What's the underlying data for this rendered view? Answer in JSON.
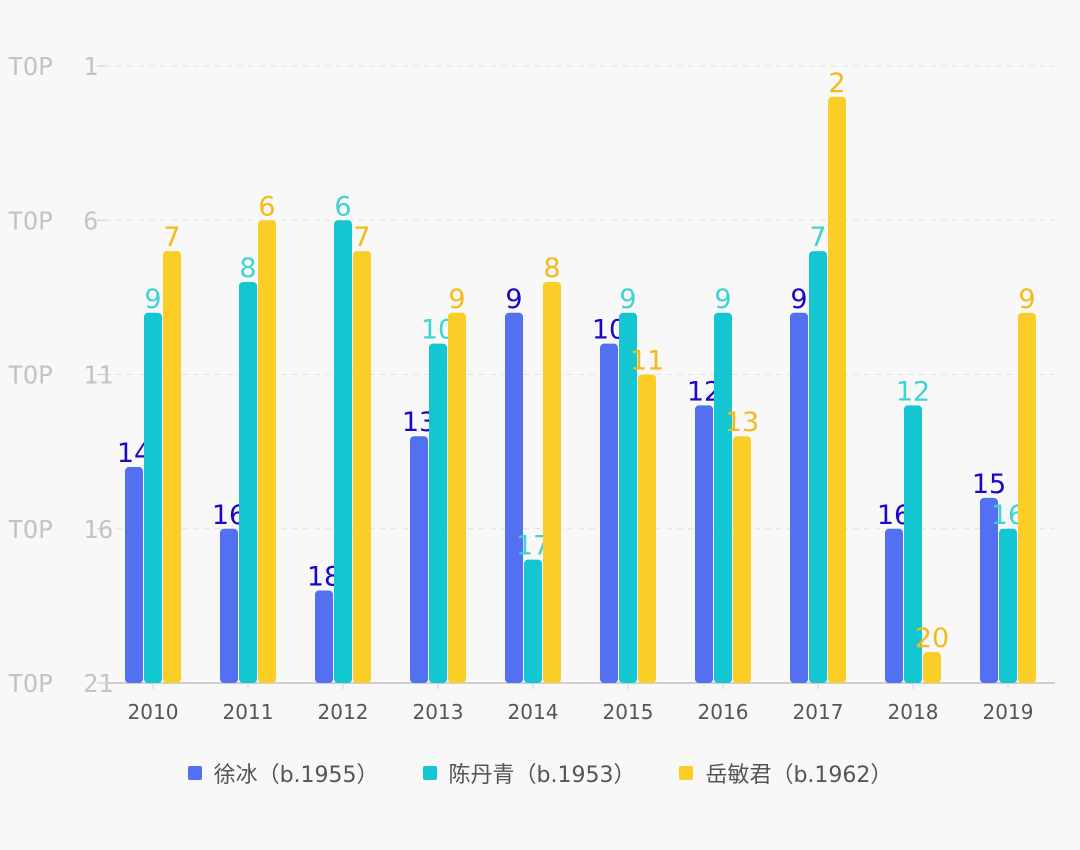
{
  "chart_data": {
    "type": "bar",
    "categories": [
      "2010",
      "2011",
      "2012",
      "2013",
      "2014",
      "2015",
      "2016",
      "2017",
      "2018",
      "2019"
    ],
    "series": [
      {
        "name": "徐冰（b.1955）",
        "color": "#5270ef",
        "label_color": "#1a06c9",
        "values": [
          14,
          16,
          18,
          13,
          9,
          10,
          12,
          9,
          16,
          15
        ]
      },
      {
        "name": "陈丹青（b.1953）",
        "color": "#14c6d2",
        "label_color": "#3fd3d3",
        "values": [
          9,
          8,
          6,
          10,
          17,
          9,
          9,
          7,
          12,
          16
        ]
      },
      {
        "name": "岳敏君（b.1962）",
        "color": "#fbcd27",
        "label_color": "#f6ba18",
        "values": [
          7,
          6,
          7,
          9,
          8,
          11,
          13,
          2,
          20,
          9
        ]
      }
    ],
    "y_axis": {
      "inverted": true,
      "range": [
        1,
        21
      ],
      "ticks": [
        1,
        6,
        11,
        16,
        21
      ],
      "tick_labels": [
        "TOP  1",
        "TOP  6",
        "TOP  11",
        "TOP  16",
        "TOP  21"
      ],
      "grid": "dashed"
    },
    "legend_position": "bottom-center"
  }
}
